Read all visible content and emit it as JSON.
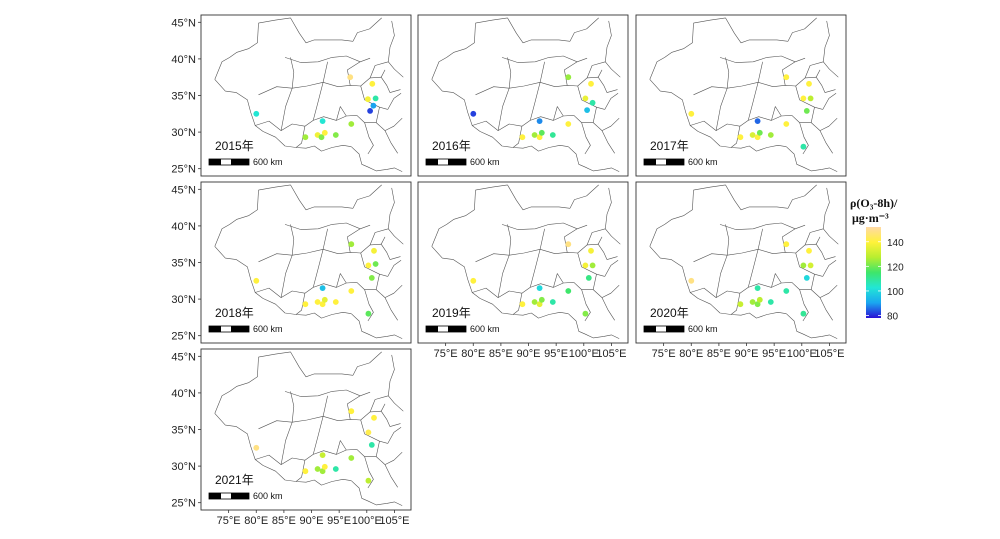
{
  "chart_data": {
    "type": "scatter",
    "lat_ticks": [
      25,
      30,
      35,
      40,
      45
    ],
    "lat_labels": [
      "25°N",
      "30°N",
      "35°N",
      "40°N",
      "45°N"
    ],
    "lon_ticks": [
      75,
      80,
      85,
      90,
      95,
      100,
      105
    ],
    "lon_labels": [
      "75°E",
      "80°E",
      "85°E",
      "90°E",
      "95°E",
      "100°E",
      "105°E"
    ],
    "lon_range": [
      70,
      108
    ],
    "lat_range": [
      24,
      46
    ],
    "scale_bar_label": "600 km",
    "legend": {
      "title_line1": "ρ(O₃-8h)/",
      "title_line2": "μg·m⁻³",
      "ticks": [
        80,
        100,
        120,
        140
      ],
      "tick_labels": [
        "80",
        "100",
        "120",
        "140"
      ],
      "vmin": 78,
      "vmax": 152,
      "colors": [
        "#2a10d6",
        "#1aa7f0",
        "#22e6d6",
        "#3ee66a",
        "#b8ee30",
        "#fff23a",
        "#ffd9a6"
      ]
    },
    "panels": [
      {
        "year": "2015年",
        "points": [
          {
            "lon": 97,
            "lat": 37.5,
            "v": 148
          },
          {
            "lon": 101,
            "lat": 36.6,
            "v": 140
          },
          {
            "lon": 100.2,
            "lat": 34.5,
            "v": 138
          },
          {
            "lon": 101.6,
            "lat": 34.6,
            "v": 108
          },
          {
            "lon": 101.2,
            "lat": 33.6,
            "v": 90
          },
          {
            "lon": 100.6,
            "lat": 32.9,
            "v": 82
          },
          {
            "lon": 80,
            "lat": 32.5,
            "v": 103
          },
          {
            "lon": 92,
            "lat": 31.5,
            "v": 103
          },
          {
            "lon": 97.2,
            "lat": 31.1,
            "v": 125
          },
          {
            "lon": 88.9,
            "lat": 29.3,
            "v": 125
          },
          {
            "lon": 91.1,
            "lat": 29.6,
            "v": 137
          },
          {
            "lon": 91.8,
            "lat": 29.3,
            "v": 122
          },
          {
            "lon": 94.4,
            "lat": 29.6,
            "v": 122
          },
          {
            "lon": 92.4,
            "lat": 29.9,
            "v": 140
          }
        ]
      },
      {
        "year": "2016年",
        "points": [
          {
            "lon": 97.2,
            "lat": 37.5,
            "v": 124
          },
          {
            "lon": 101.3,
            "lat": 36.6,
            "v": 140
          },
          {
            "lon": 100.3,
            "lat": 34.6,
            "v": 136
          },
          {
            "lon": 101.6,
            "lat": 34,
            "v": 108
          },
          {
            "lon": 100.6,
            "lat": 33,
            "v": 95
          },
          {
            "lon": 80,
            "lat": 32.5,
            "v": 82
          },
          {
            "lon": 92,
            "lat": 31.5,
            "v": 88
          },
          {
            "lon": 97.2,
            "lat": 31.1,
            "v": 140
          },
          {
            "lon": 88.9,
            "lat": 29.3,
            "v": 140
          },
          {
            "lon": 91.1,
            "lat": 29.6,
            "v": 125
          },
          {
            "lon": 92,
            "lat": 29.3,
            "v": 140
          },
          {
            "lon": 94.4,
            "lat": 29.6,
            "v": 110
          },
          {
            "lon": 92.4,
            "lat": 29.9,
            "v": 118
          }
        ]
      },
      {
        "year": "2017年",
        "points": [
          {
            "lon": 97.2,
            "lat": 37.5,
            "v": 140
          },
          {
            "lon": 101.3,
            "lat": 36.6,
            "v": 140
          },
          {
            "lon": 100.3,
            "lat": 34.6,
            "v": 140
          },
          {
            "lon": 101.6,
            "lat": 34.6,
            "v": 128
          },
          {
            "lon": 100.9,
            "lat": 32.9,
            "v": 120
          },
          {
            "lon": 80,
            "lat": 32.5,
            "v": 140
          },
          {
            "lon": 92,
            "lat": 31.5,
            "v": 85
          },
          {
            "lon": 97.2,
            "lat": 31.1,
            "v": 140
          },
          {
            "lon": 88.9,
            "lat": 29.3,
            "v": 140
          },
          {
            "lon": 91.1,
            "lat": 29.6,
            "v": 133
          },
          {
            "lon": 92,
            "lat": 29.3,
            "v": 140
          },
          {
            "lon": 94.4,
            "lat": 29.6,
            "v": 125
          },
          {
            "lon": 92.4,
            "lat": 29.9,
            "v": 120
          },
          {
            "lon": 100.3,
            "lat": 28,
            "v": 108
          }
        ]
      },
      {
        "year": "2018年",
        "points": [
          {
            "lon": 97.2,
            "lat": 37.5,
            "v": 125
          },
          {
            "lon": 101.3,
            "lat": 36.6,
            "v": 138
          },
          {
            "lon": 100.3,
            "lat": 34.6,
            "v": 140
          },
          {
            "lon": 101.6,
            "lat": 34.8,
            "v": 120
          },
          {
            "lon": 100.9,
            "lat": 32.9,
            "v": 122
          },
          {
            "lon": 80,
            "lat": 32.5,
            "v": 140
          },
          {
            "lon": 92,
            "lat": 31.5,
            "v": 95
          },
          {
            "lon": 97.2,
            "lat": 31.1,
            "v": 140
          },
          {
            "lon": 88.9,
            "lat": 29.3,
            "v": 140
          },
          {
            "lon": 91.1,
            "lat": 29.6,
            "v": 140
          },
          {
            "lon": 92,
            "lat": 29.3,
            "v": 140
          },
          {
            "lon": 94.4,
            "lat": 29.6,
            "v": 140
          },
          {
            "lon": 92.4,
            "lat": 29.9,
            "v": 135
          },
          {
            "lon": 100.3,
            "lat": 28,
            "v": 118
          }
        ]
      },
      {
        "year": "2019年",
        "points": [
          {
            "lon": 97.2,
            "lat": 37.5,
            "v": 148
          },
          {
            "lon": 101.3,
            "lat": 36.6,
            "v": 138
          },
          {
            "lon": 100.3,
            "lat": 34.6,
            "v": 138
          },
          {
            "lon": 101.6,
            "lat": 34.6,
            "v": 125
          },
          {
            "lon": 100.9,
            "lat": 32.9,
            "v": 112
          },
          {
            "lon": 80,
            "lat": 32.5,
            "v": 140
          },
          {
            "lon": 92,
            "lat": 31.5,
            "v": 100
          },
          {
            "lon": 97.2,
            "lat": 31.1,
            "v": 115
          },
          {
            "lon": 88.9,
            "lat": 29.3,
            "v": 140
          },
          {
            "lon": 91.1,
            "lat": 29.6,
            "v": 125
          },
          {
            "lon": 92,
            "lat": 29.3,
            "v": 135
          },
          {
            "lon": 94.4,
            "lat": 29.6,
            "v": 108
          },
          {
            "lon": 92.4,
            "lat": 29.9,
            "v": 122
          },
          {
            "lon": 100.3,
            "lat": 28,
            "v": 122
          }
        ]
      },
      {
        "year": "2020年",
        "points": [
          {
            "lon": 97.2,
            "lat": 37.5,
            "v": 140
          },
          {
            "lon": 101.3,
            "lat": 36.6,
            "v": 140
          },
          {
            "lon": 100.3,
            "lat": 34.6,
            "v": 125
          },
          {
            "lon": 101.6,
            "lat": 34.6,
            "v": 132
          },
          {
            "lon": 100.9,
            "lat": 32.9,
            "v": 100
          },
          {
            "lon": 80,
            "lat": 32.5,
            "v": 148
          },
          {
            "lon": 92,
            "lat": 31.5,
            "v": 108
          },
          {
            "lon": 97.2,
            "lat": 31.1,
            "v": 108
          },
          {
            "lon": 88.9,
            "lat": 29.3,
            "v": 130
          },
          {
            "lon": 91.1,
            "lat": 29.6,
            "v": 125
          },
          {
            "lon": 92,
            "lat": 29.3,
            "v": 122
          },
          {
            "lon": 94.4,
            "lat": 29.6,
            "v": 108
          },
          {
            "lon": 92.4,
            "lat": 29.9,
            "v": 128
          },
          {
            "lon": 100.3,
            "lat": 28,
            "v": 110
          }
        ]
      },
      {
        "year": "2021年",
        "points": [
          {
            "lon": 97.2,
            "lat": 37.5,
            "v": 140
          },
          {
            "lon": 101.3,
            "lat": 36.6,
            "v": 140
          },
          {
            "lon": 100.3,
            "lat": 34.6,
            "v": 142
          },
          {
            "lon": 100.9,
            "lat": 32.9,
            "v": 108
          },
          {
            "lon": 80,
            "lat": 32.5,
            "v": 148
          },
          {
            "lon": 92,
            "lat": 31.5,
            "v": 130
          },
          {
            "lon": 97.2,
            "lat": 31.1,
            "v": 125
          },
          {
            "lon": 88.9,
            "lat": 29.3,
            "v": 140
          },
          {
            "lon": 91.1,
            "lat": 29.6,
            "v": 125
          },
          {
            "lon": 92,
            "lat": 29.3,
            "v": 125
          },
          {
            "lon": 94.4,
            "lat": 29.6,
            "v": 108
          },
          {
            "lon": 92.4,
            "lat": 29.9,
            "v": 140
          },
          {
            "lon": 100.3,
            "lat": 28,
            "v": 128
          }
        ]
      }
    ]
  }
}
